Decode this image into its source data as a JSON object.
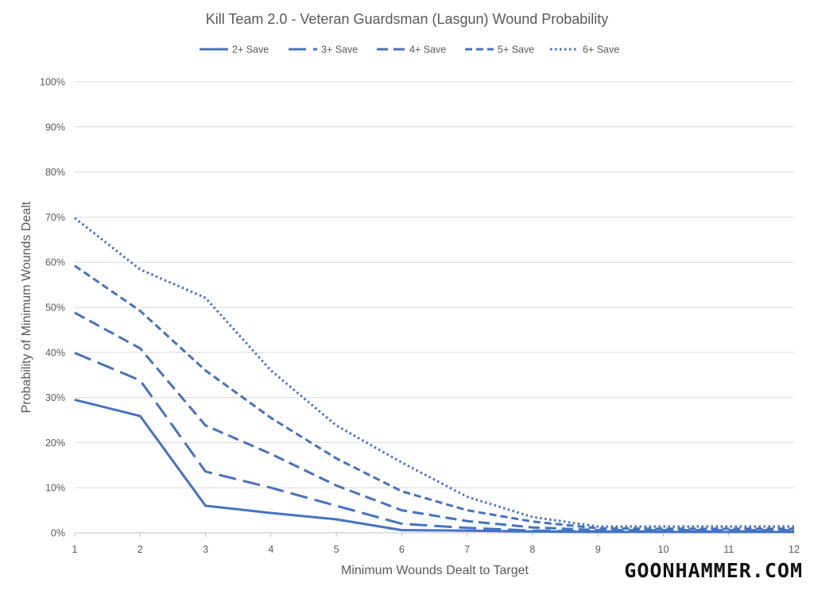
{
  "chart_data": {
    "type": "line",
    "title": "Kill Team 2.0 - Veteran Guardsman (Lasgun) Wound Probability",
    "xlabel": "Minimum Wounds Dealt to Target",
    "ylabel": "Probability of Minimum Wounds Dealt",
    "x": [
      1,
      2,
      3,
      4,
      5,
      6,
      7,
      8,
      9,
      10,
      11,
      12
    ],
    "ylim": [
      0,
      1
    ],
    "yticks": [
      "0%",
      "10%",
      "20%",
      "30%",
      "40%",
      "50%",
      "60%",
      "70%",
      "80%",
      "90%",
      "100%"
    ],
    "legend_position": "top",
    "grid": true,
    "series": [
      {
        "name": "2+ Save",
        "dash": "solid",
        "values": [
          0.295,
          0.259,
          0.06,
          0.044,
          0.03,
          0.006,
          0.005,
          0.003,
          0.002,
          0.002,
          0.002,
          0.002
        ]
      },
      {
        "name": "3+ Save",
        "dash": "longdash",
        "values": [
          0.399,
          0.338,
          0.136,
          0.1,
          0.06,
          0.02,
          0.011,
          0.005,
          0.003,
          0.003,
          0.003,
          0.003
        ]
      },
      {
        "name": "4+ Save",
        "dash": "dash",
        "values": [
          0.488,
          0.409,
          0.238,
          0.175,
          0.105,
          0.05,
          0.026,
          0.012,
          0.006,
          0.006,
          0.006,
          0.006
        ]
      },
      {
        "name": "5+ Save",
        "dash": "shortdash",
        "values": [
          0.592,
          0.492,
          0.36,
          0.255,
          0.165,
          0.092,
          0.05,
          0.025,
          0.01,
          0.009,
          0.009,
          0.009
        ]
      },
      {
        "name": "6+ Save",
        "dash": "dot",
        "values": [
          0.698,
          0.584,
          0.521,
          0.36,
          0.238,
          0.156,
          0.08,
          0.035,
          0.014,
          0.014,
          0.014,
          0.014
        ]
      }
    ],
    "colors": {
      "line": "#4472C4",
      "grid": "#d9d9d9",
      "text": "#595959"
    }
  },
  "branding": {
    "text": "GOONHAMMER.COM"
  }
}
